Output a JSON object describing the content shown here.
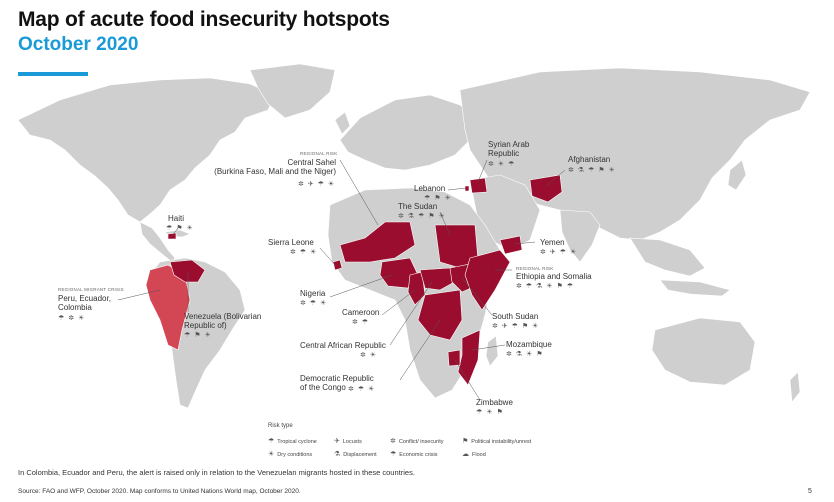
{
  "header": {
    "title": "Map of acute food insecurity hotspots",
    "subtitle": "October 2020"
  },
  "colors": {
    "hotspot": "#9b0d2e",
    "regional": "#d34654",
    "land": "#cfcfcf",
    "background": "#ffffff",
    "accent": "#1a9ad6"
  },
  "hotspots": {
    "syria": {
      "name": "Syrian Arab\nRepublic",
      "icons": "✲ ☀ ☂"
    },
    "afghanistan": {
      "name": "Afghanistan",
      "icons": "✲ ⚗ ☂ ⚑ ☀"
    },
    "sahel": {
      "tag": "REGIONAL RISK",
      "name": "Central Sahel\n(Burkina Faso, Mali and the Niger)",
      "icons": "✲ ✈ ☂ ☀"
    },
    "lebanon": {
      "name": "Lebanon",
      "icons": "☂ ⚑ ☀"
    },
    "sudan": {
      "name": "The Sudan",
      "icons": "✲ ⚗ ☂ ⚑ ☀"
    },
    "haiti": {
      "name": "Haiti",
      "icons": "☂ ⚑ ☀"
    },
    "sierra_leone": {
      "name": "Sierra Leone",
      "icons": "✲ ☂ ☀"
    },
    "yemen": {
      "name": "Yemen",
      "icons": "✲ ✈ ☂ ☀"
    },
    "ethiopia_somalia": {
      "tag": "REGIONAL RISK",
      "name": "Ethiopia and Somalia",
      "icons": "✲ ☂ ⚗ ☀ ⚑ ☂"
    },
    "peru": {
      "tag": "REGIONAL MIGRANT CRISIS",
      "name": "Peru, Ecuador,\nColombia",
      "icons": "☂ ✲ ☀"
    },
    "nigeria": {
      "name": "Nigeria",
      "icons": "✲ ☂ ☀"
    },
    "venezuela": {
      "name": "Venezuela (Bolivarian\nRepublic of)",
      "icons": "☂ ⚑ ☀"
    },
    "cameroon": {
      "name": "Cameroon",
      "icons": "✲ ☂"
    },
    "south_sudan": {
      "name": "South Sudan",
      "icons": "✲ ✈ ☂ ⚑ ☀"
    },
    "car": {
      "name": "Central African Republic",
      "icons": "✲ ☀"
    },
    "mozambique": {
      "name": "Mozambique",
      "icons": "✲ ⚗ ☀ ⚑"
    },
    "drc": {
      "name": "Democratic Republic\nof the Congo",
      "icons": "✲ ☂ ☀"
    },
    "zimbabwe": {
      "name": "Zimbabwe",
      "icons": "☂ ☀ ⚑"
    }
  },
  "legend": {
    "title": "Risk type",
    "items": [
      {
        "icon": "cyclone-icon",
        "glyph": "☂",
        "label": "Tropical cyclone"
      },
      {
        "icon": "locust-icon",
        "glyph": "✈",
        "label": "Locusts"
      },
      {
        "icon": "conflict-icon",
        "glyph": "✲",
        "label": "Conflict/ insecurity"
      },
      {
        "icon": "political-icon",
        "glyph": "⚑",
        "label": "Political instability/unrest"
      },
      {
        "icon": "drought-icon",
        "glyph": "☀",
        "label": "Dry conditions"
      },
      {
        "icon": "displacement-icon",
        "glyph": "⚗",
        "label": "Displacement"
      },
      {
        "icon": "economic-icon",
        "glyph": "☂",
        "label": "Economic crisis"
      },
      {
        "icon": "flood-icon",
        "glyph": "☁",
        "label": "Flood"
      }
    ]
  },
  "footer": {
    "note": "In Colombia, Ecuador and Peru, the alert is raised only in relation to the Venezuelan migrants hosted in these countries.",
    "source": "Source: FAO and WFP, October 2020. Map conforms to United Nations World map, October 2020.",
    "page_number": "5"
  }
}
